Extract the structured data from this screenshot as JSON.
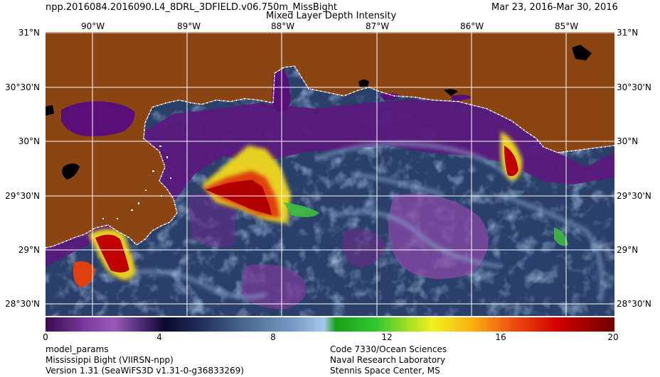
{
  "header": {
    "product_id": "npp.2016084.2016090.L4_8DRL_3DFIELD.v06.750m_MissBight",
    "subtitle": "Mixed Layer Depth Intensity",
    "date_range": "Mar 23, 2016-Mar 30, 2016"
  },
  "map": {
    "lon_labels": [
      "90°W",
      "89°W",
      "88°W",
      "87°W",
      "86°W",
      "85°W"
    ],
    "lat_labels": [
      "31°N",
      "30°30'N",
      "30°N",
      "29°30'N",
      "29°N",
      "28°30'N"
    ],
    "colors": {
      "land": "#8b4512",
      "grid": "#ffffff",
      "coast": "#ffffff",
      "inland_water": "#000000",
      "low": "#5a0f78",
      "mid": "#5e7fa8",
      "high": "#c80000"
    }
  },
  "colorbar": {
    "tick_labels": [
      "0",
      "4",
      "8",
      "12",
      "16",
      "20"
    ],
    "min": 0,
    "max": 20
  },
  "footer": {
    "left": [
      "model_params",
      "Mississippi Bight (VIIRSN-npp)",
      "Version 1.31 (SeaWiFS3D v1.31-0-g36833269)"
    ],
    "right": [
      "Code 7330/Ocean Sciences",
      "Naval Research Laboratory",
      "Stennis Space Center, MS"
    ]
  }
}
